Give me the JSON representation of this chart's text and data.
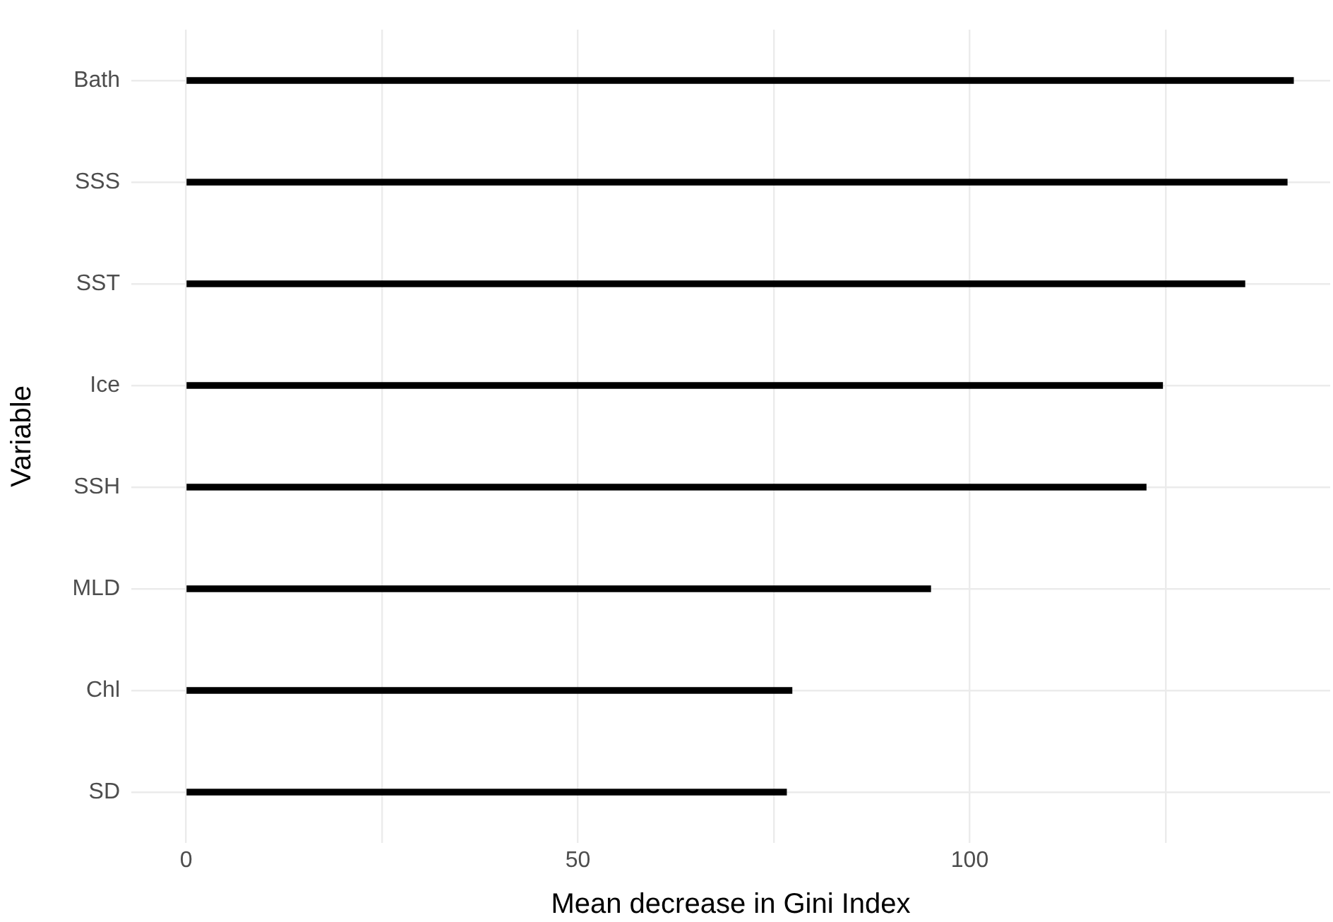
{
  "chart_data": {
    "type": "bar",
    "orientation": "horizontal",
    "xlabel": "Mean decrease in Gini Index",
    "ylabel": "Variable",
    "categories": [
      "Bath",
      "SSS",
      "SST",
      "Ice",
      "SSH",
      "MLD",
      "Chl",
      "SD"
    ],
    "values": [
      141.3,
      140.5,
      135.1,
      124.6,
      122.5,
      95.0,
      77.3,
      76.6
    ],
    "color": "#000000",
    "xlim": [
      -7,
      146
    ],
    "xticks": [
      0,
      {
        "value": 25,
        "label": null
      },
      50,
      {
        "value": 75,
        "label": null
      },
      100,
      {
        "value": 125,
        "label": null
      }
    ],
    "grid": true,
    "legend": false
  }
}
